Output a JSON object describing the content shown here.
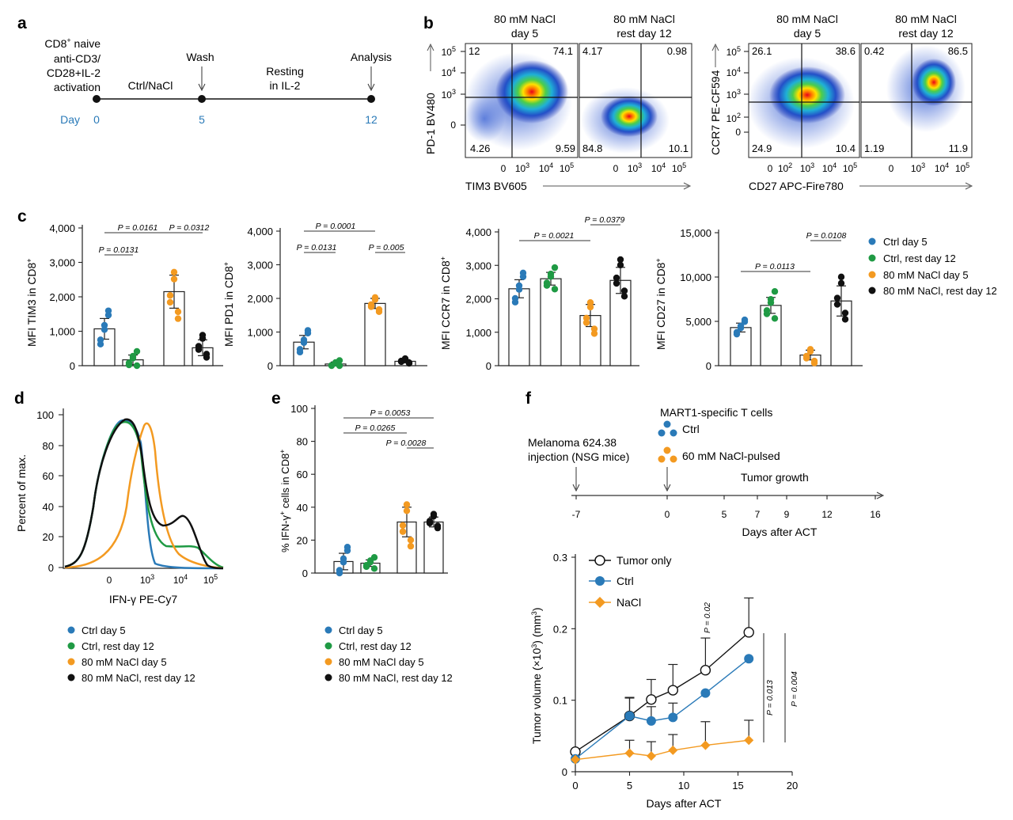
{
  "panels": {
    "a": "a",
    "b": "b",
    "c": "c",
    "d": "d",
    "e": "e",
    "f": "f"
  },
  "colors": {
    "ctrl_day5": "#2a7ab8",
    "ctrl_rest12": "#1f9a44",
    "nacl_day5": "#f39a21",
    "nacl_rest12": "#111111"
  },
  "panel_a": {
    "l1": "CD8",
    "l1sup": "+",
    "l1b": " naive",
    "l2": "anti-CD3/",
    "l3": "CD28+IL-2",
    "l4": "activation",
    "ctrl_nacl": "Ctrl/NaCl",
    "wash": "Wash",
    "resting1": "Resting",
    "resting2": "in IL-2",
    "analysis": "Analysis",
    "day_label": "Day",
    "days": [
      "0",
      "5",
      "12"
    ]
  },
  "panel_b": {
    "left": {
      "col1a": "80 mM NaCl",
      "col1b": "day 5",
      "col2a": "80 mM NaCl",
      "col2b": "rest day 12",
      "ylabel": "PD-1 BV480",
      "xlabel": "TIM3 BV605",
      "q1": {
        "tl": "12",
        "tr": "74.1",
        "bl": "4.26",
        "br": "9.59"
      },
      "q2": {
        "tl": "4.17",
        "tr": "0.98",
        "bl": "84.8",
        "br": "10.1"
      }
    },
    "right": {
      "col1a": "80 mM NaCl",
      "col1b": "day 5",
      "col2a": "80 mM NaCl",
      "col2b": "rest day 12",
      "ylabel": "CCR7 PE-CF594",
      "xlabel": "CD27 APC-Fire780",
      "q1": {
        "tl": "26.1",
        "tr": "38.6",
        "bl": "24.9",
        "br": "10.4"
      },
      "q2": {
        "tl": "0.42",
        "tr": "86.5",
        "bl": "1.19",
        "br": "11.9"
      }
    },
    "ticks": {
      "zero": "0",
      "ten": "10",
      "e5": "5",
      "e4": "4",
      "e3": "3",
      "e2": "2"
    }
  },
  "panel_c": {
    "plots": [
      {
        "ylabel": "MFI TIM3 in CD8",
        "sup": "+",
        "yticks": [
          "4,000",
          "3,000",
          "2,000",
          "1,000",
          "0"
        ],
        "pvals": [
          {
            "text": "P = 0.0161"
          },
          {
            "text": "P = 0.0312"
          },
          {
            "text": "P = 0.0131"
          }
        ]
      },
      {
        "ylabel": "MFI PD1 in CD8",
        "sup": "+",
        "yticks": [
          "4,000",
          "3,000",
          "2,000",
          "1,000",
          "0"
        ],
        "pvals": [
          {
            "text": "P = 0.0001"
          },
          {
            "text": "P = 0.0131"
          },
          {
            "text": "P = 0.005"
          }
        ]
      },
      {
        "ylabel": "MFI CCR7 in CD8",
        "sup": "+",
        "yticks": [
          "4,000",
          "3,000",
          "2,000",
          "1,000",
          "0"
        ],
        "pvals": [
          {
            "text": "P = 0.0379"
          },
          {
            "text": "P = 0.0021"
          }
        ]
      },
      {
        "ylabel": "MFI CD27 in CD8",
        "sup": "+",
        "yticks": [
          "15,000",
          "10,000",
          "5,000",
          "0"
        ],
        "pvals": [
          {
            "text": "P = 0.0108"
          },
          {
            "text": "P = 0.0113"
          }
        ]
      }
    ],
    "legend": [
      "Ctrl day 5",
      "Ctrl, rest day 12",
      "80 mM NaCl day 5",
      "80 mM NaCl, rest day 12"
    ]
  },
  "chart_data": [
    {
      "type": "bar",
      "panel": "c1",
      "ylabel": "MFI TIM3 in CD8+",
      "ylim": [
        0,
        4000
      ],
      "categories": [
        "Ctrl day 5",
        "Ctrl, rest day 12",
        "80 mM NaCl day 5",
        "80 mM NaCl, rest day 12"
      ],
      "values": [
        1070,
        170,
        2150,
        520
      ],
      "errors": [
        300,
        140,
        480,
        230
      ]
    },
    {
      "type": "bar",
      "panel": "c2",
      "ylabel": "MFI PD1 in CD8+",
      "ylim": [
        0,
        4000
      ],
      "categories": [
        "Ctrl day 5",
        "Ctrl, rest day 12",
        "80 mM NaCl day 5",
        "80 mM NaCl, rest day 12"
      ],
      "values": [
        700,
        50,
        1850,
        130
      ],
      "errors": [
        200,
        60,
        150,
        50
      ]
    },
    {
      "type": "bar",
      "panel": "c3",
      "ylabel": "MFI CCR7 in CD8+",
      "ylim": [
        0,
        4000
      ],
      "categories": [
        "Ctrl day 5",
        "Ctrl, rest day 12",
        "80 mM NaCl day 5",
        "80 mM NaCl, rest day 12"
      ],
      "values": [
        2300,
        2600,
        1500,
        2550
      ],
      "errors": [
        270,
        190,
        330,
        390
      ]
    },
    {
      "type": "bar",
      "panel": "c4",
      "ylabel": "MFI CD27 in CD8+",
      "ylim": [
        0,
        15000
      ],
      "categories": [
        "Ctrl day 5",
        "Ctrl, rest day 12",
        "80 mM NaCl day 5",
        "80 mM NaCl, rest day 12"
      ],
      "values": [
        4300,
        6800,
        1200,
        7300
      ],
      "errors": [
        500,
        900,
        550,
        1700
      ]
    },
    {
      "type": "bar",
      "panel": "e",
      "ylabel": "% IFN-γ+ cells in CD8+",
      "ylim": [
        0,
        100
      ],
      "categories": [
        "Ctrl day 5",
        "Ctrl, rest day 12",
        "80 mM NaCl day 5",
        "80 mM NaCl, rest day 12"
      ],
      "values": [
        7,
        6,
        31,
        31
      ],
      "errors": [
        5,
        2,
        9,
        3
      ]
    },
    {
      "type": "line",
      "panel": "f",
      "xlabel": "Days after ACT",
      "ylabel": "Tumor volume (×10³) (mm³)",
      "xlim": [
        0,
        20
      ],
      "ylim": [
        0,
        0.3
      ],
      "series": [
        {
          "name": "Tumor only",
          "x": [
            0,
            5,
            7,
            9,
            12,
            16
          ],
          "y": [
            0.028,
            0.078,
            0.101,
            0.114,
            0.142,
            0.195
          ]
        },
        {
          "name": "Ctrl",
          "x": [
            0,
            5,
            7,
            9,
            12,
            16
          ],
          "y": [
            0.018,
            0.078,
            0.071,
            0.076,
            0.11,
            0.158
          ]
        },
        {
          "name": "NaCl",
          "x": [
            0,
            5,
            7,
            9,
            12,
            16
          ],
          "y": [
            0.017,
            0.026,
            0.022,
            0.03,
            0.037,
            0.044
          ]
        }
      ]
    }
  ],
  "panel_d": {
    "ylabel": "Percent of max.",
    "xlabel": "IFN-γ PE-Cy7",
    "yticks": [
      "100",
      "80",
      "60",
      "40",
      "20",
      "0"
    ],
    "legend": [
      "Ctrl day 5",
      "Ctrl, rest day 12",
      "80 mM NaCl day 5",
      "80 mM NaCl, rest day 12"
    ]
  },
  "panel_e": {
    "ylabel": "% IFN-γ",
    "ylabel_sup": "+",
    "ylabel2": " cells in CD8",
    "ylabel2_sup": "+",
    "yticks": [
      "100",
      "80",
      "60",
      "40",
      "20",
      "0"
    ],
    "pvals": [
      {
        "text": "P = 0.0053"
      },
      {
        "text": "P = 0.0265"
      },
      {
        "text": "P = 0.0028"
      }
    ],
    "legend": [
      "Ctrl day 5",
      "Ctrl, rest day 12",
      "80 mM NaCl day 5",
      "80 mM NaCl, rest day 12"
    ]
  },
  "panel_f": {
    "mart1": "MART1-specific T cells",
    "ctrl": "Ctrl",
    "nacl": "60 mM NaCl-pulsed",
    "melanoma1": "Melanoma 624.38",
    "melanoma2": "injection (NSG mice)",
    "tumor_growth": "Tumor growth",
    "days_after": "Days after ACT",
    "timeline_ticks": [
      "-7",
      "0",
      "5",
      "7",
      "9",
      "12",
      "16"
    ],
    "yticks": [
      "0.3",
      "0.2",
      "0.1",
      "0"
    ],
    "xticks": [
      "0",
      "5",
      "10",
      "15",
      "20"
    ],
    "ylabel": "Tumor volume (×10",
    "ylabel_sup": "3",
    "ylabel_end": ") (mm",
    "ylabel_sup2": "3",
    "ylabel_close": ")",
    "legend": [
      "Tumor only",
      "Ctrl",
      "NaCl"
    ],
    "p1": "P = 0.02",
    "p2": "P = 0.013",
    "p3": "P = 0.004"
  }
}
